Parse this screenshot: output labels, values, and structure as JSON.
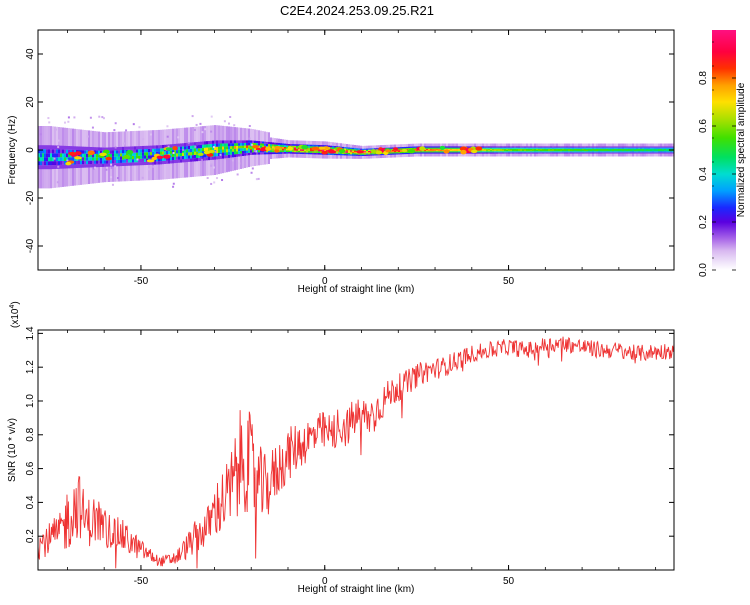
{
  "title": "C2E4.2024.253.09.25.R21",
  "chart_data": [
    {
      "type": "heatmap",
      "xlabel": "Height of straight line (km)",
      "ylabel": "Frequency (Hz)",
      "xlim": [
        -78,
        95
      ],
      "ylim": [
        -50,
        50
      ],
      "x_ticks": [
        -50,
        0,
        50
      ],
      "y_ticks": [
        -40,
        -20,
        0,
        20,
        40
      ],
      "colorbar": {
        "label": "Normalized spectral amplitude",
        "range": [
          0.0,
          1.0
        ],
        "ticks": [
          0.0,
          0.2,
          0.4,
          0.6,
          0.8
        ],
        "tick_labels": [
          "0.0",
          "0.2",
          "0.4",
          "0.6",
          "0.8"
        ]
      },
      "signal_band": {
        "center_hz": 0,
        "description": "Energy concentrated near 0 Hz; broad and patchy below -20 km, narrow and continuous above 0 km",
        "ridge": [
          {
            "x": -75,
            "center": -3,
            "half_width": 5,
            "amplitude": 0.35
          },
          {
            "x": -60,
            "center": -3,
            "half_width": 4,
            "amplitude": 0.4
          },
          {
            "x": -45,
            "center": -2,
            "half_width": 4,
            "amplitude": 0.45
          },
          {
            "x": -30,
            "center": 0,
            "half_width": 4,
            "amplitude": 0.5
          },
          {
            "x": -20,
            "center": 1,
            "half_width": 3,
            "amplitude": 0.65
          },
          {
            "x": -10,
            "center": 0.5,
            "half_width": 2,
            "amplitude": 0.8
          },
          {
            "x": 0,
            "center": 0,
            "half_width": 2,
            "amplitude": 0.85
          },
          {
            "x": 10,
            "center": -1,
            "half_width": 1.5,
            "amplitude": 0.9
          },
          {
            "x": 25,
            "center": 0,
            "half_width": 1.5,
            "amplitude": 0.85
          },
          {
            "x": 50,
            "center": 0,
            "half_width": 1.5,
            "amplitude": 0.6
          },
          {
            "x": 75,
            "center": 0,
            "half_width": 1.5,
            "amplitude": 0.55
          },
          {
            "x": 95,
            "center": 0,
            "half_width": 1.5,
            "amplitude": 0.5
          }
        ]
      }
    },
    {
      "type": "line",
      "xlabel": "Height of straight line (km)",
      "ylabel": "SNR (10 * v/v)",
      "y_multiplier": "(x10",
      "y_multiplier_exp": "4",
      "y_multiplier_close": ")",
      "xlim": [
        -78,
        95
      ],
      "ylim": [
        0.0,
        1.42
      ],
      "x_ticks": [
        -50,
        0,
        50
      ],
      "y_ticks": [
        0.2,
        0.4,
        0.6,
        0.8,
        1.0,
        1.2,
        1.4
      ],
      "y_tick_labels": [
        "0.2",
        "0.4",
        "0.6",
        "0.8",
        "1.0",
        "1.2",
        "1.4"
      ],
      "series": [
        {
          "name": "SNR",
          "color": "#ee3333",
          "x": [
            -78,
            -75,
            -72,
            -70,
            -67,
            -65,
            -62,
            -60,
            -57,
            -55,
            -52,
            -50,
            -47,
            -45,
            -42,
            -40,
            -37,
            -35,
            -32,
            -30,
            -28,
            -26,
            -24,
            -22,
            -20,
            -18,
            -16,
            -14,
            -12,
            -10,
            -8,
            -6,
            -4,
            -2,
            0,
            2,
            4,
            6,
            8,
            10,
            12,
            14,
            16,
            18,
            20,
            22,
            25,
            28,
            32,
            36,
            40,
            45,
            50,
            55,
            60,
            65,
            70,
            75,
            80,
            85,
            90,
            95
          ],
          "y": [
            0.15,
            0.18,
            0.22,
            0.3,
            0.4,
            0.28,
            0.3,
            0.25,
            0.22,
            0.2,
            0.15,
            0.12,
            0.08,
            0.05,
            0.06,
            0.08,
            0.15,
            0.2,
            0.25,
            0.35,
            0.4,
            0.45,
            0.55,
            0.7,
            0.6,
            0.5,
            0.48,
            0.55,
            0.62,
            0.68,
            0.72,
            0.75,
            0.78,
            0.8,
            0.82,
            0.8,
            0.86,
            0.84,
            0.9,
            0.92,
            0.9,
            0.95,
            1.0,
            1.05,
            1.08,
            1.1,
            1.15,
            1.18,
            1.2,
            1.24,
            1.28,
            1.3,
            1.32,
            1.3,
            1.33,
            1.34,
            1.32,
            1.3,
            1.3,
            1.28,
            1.29,
            1.3
          ],
          "noise": [
            0.08,
            0.1,
            0.12,
            0.2,
            0.2,
            0.15,
            0.15,
            0.12,
            0.1,
            0.1,
            0.08,
            0.06,
            0.04,
            0.03,
            0.04,
            0.05,
            0.08,
            0.1,
            0.12,
            0.16,
            0.2,
            0.22,
            0.3,
            0.35,
            0.3,
            0.25,
            0.2,
            0.18,
            0.17,
            0.16,
            0.15,
            0.14,
            0.13,
            0.13,
            0.12,
            0.12,
            0.12,
            0.12,
            0.12,
            0.11,
            0.11,
            0.11,
            0.1,
            0.09,
            0.08,
            0.08,
            0.07,
            0.07,
            0.06,
            0.06,
            0.05,
            0.05,
            0.05,
            0.05,
            0.05,
            0.05,
            0.05,
            0.05,
            0.05,
            0.05,
            0.05,
            0.05
          ]
        }
      ]
    }
  ]
}
